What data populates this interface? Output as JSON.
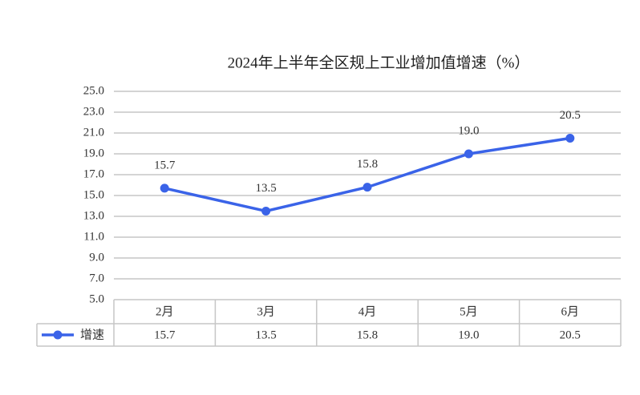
{
  "chart_data": {
    "type": "line",
    "title": "2024年上半年全区规上工业增加值增速（%）",
    "categories": [
      "2月",
      "3月",
      "4月",
      "5月",
      "6月"
    ],
    "series": [
      {
        "name": "增速",
        "color": "#3a63e8",
        "values": [
          15.7,
          13.5,
          15.8,
          19.0,
          20.5
        ],
        "value_labels": [
          "15.7",
          "13.5",
          "15.8",
          "19.0",
          "20.5"
        ]
      }
    ],
    "ylim": [
      5,
      25
    ],
    "yticks": [
      {
        "value": 5,
        "label": "5.0"
      },
      {
        "value": 7,
        "label": "7.0"
      },
      {
        "value": 9,
        "label": "9.0"
      },
      {
        "value": 11,
        "label": "11.0"
      },
      {
        "value": 13,
        "label": "13.0"
      },
      {
        "value": 15,
        "label": "15.0"
      },
      {
        "value": 17,
        "label": "17.0"
      },
      {
        "value": 19,
        "label": "19.0"
      },
      {
        "value": 21,
        "label": "21.0"
      },
      {
        "value": 23,
        "label": "23.0"
      },
      {
        "value": 25,
        "label": "25.0"
      }
    ],
    "grid": true
  }
}
